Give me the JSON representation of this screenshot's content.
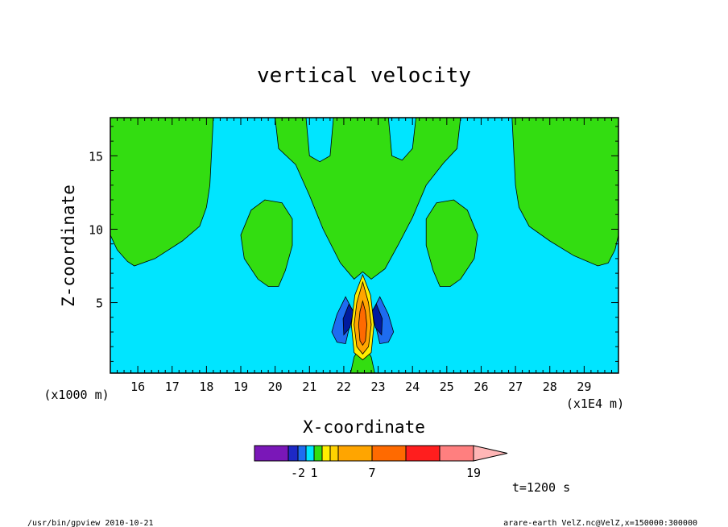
{
  "chart_data": {
    "type": "contour",
    "title": "vertical velocity",
    "xlabel": "X-coordinate",
    "ylabel": "Z-coordinate",
    "x_unit_label": "(x1E4 m)",
    "y_unit_label": "(x1000 m)",
    "xlim": [
      15.2,
      30.0
    ],
    "ylim": [
      0.2,
      17.6
    ],
    "x_ticks": [
      "16",
      "17",
      "18",
      "19",
      "20",
      "21",
      "22",
      "23",
      "24",
      "25",
      "26",
      "27",
      "28",
      "29"
    ],
    "y_ticks": [
      "5",
      "10",
      "15"
    ],
    "grid": false,
    "background_color": "#00e5ff",
    "regions": [
      {
        "name": "positive-weak",
        "color": "#33dd11",
        "polygon": [
          [
            15.2,
            17.6
          ],
          [
            15.2,
            9.6
          ],
          [
            15.4,
            8.6
          ],
          [
            15.7,
            7.8
          ],
          [
            15.9,
            7.5
          ],
          [
            16.5,
            8
          ],
          [
            17.3,
            9.2
          ],
          [
            17.8,
            10.2
          ],
          [
            18,
            11.5
          ],
          [
            18.1,
            13
          ],
          [
            18.2,
            17.6
          ]
        ]
      },
      {
        "name": "positive-weak",
        "color": "#33dd11",
        "polygon": [
          [
            26.9,
            17.6
          ],
          [
            27,
            13
          ],
          [
            27.1,
            11.5
          ],
          [
            27.4,
            10.2
          ],
          [
            28,
            9.2
          ],
          [
            28.7,
            8.2
          ],
          [
            29.4,
            7.5
          ],
          [
            29.7,
            7.7
          ],
          [
            29.9,
            8.6
          ],
          [
            30,
            9.6
          ],
          [
            30,
            17.6
          ]
        ]
      },
      {
        "name": "positive-weak",
        "color": "#33dd11",
        "polygon": [
          [
            19.0,
            9.6
          ],
          [
            19.3,
            11.3
          ],
          [
            19.7,
            12
          ],
          [
            20.2,
            11.8
          ],
          [
            20.5,
            10.7
          ],
          [
            20.5,
            8.9
          ],
          [
            20.3,
            7.2
          ],
          [
            20.1,
            6.1
          ],
          [
            19.8,
            6.1
          ],
          [
            19.5,
            6.6
          ],
          [
            19.1,
            8
          ]
        ]
      },
      {
        "name": "positive-weak",
        "color": "#33dd11",
        "polygon": [
          [
            25.9,
            9.6
          ],
          [
            25.6,
            11.3
          ],
          [
            25.2,
            12
          ],
          [
            24.7,
            11.8
          ],
          [
            24.4,
            10.7
          ],
          [
            24.4,
            8.9
          ],
          [
            24.6,
            7.2
          ],
          [
            24.8,
            6.1
          ],
          [
            25.1,
            6.1
          ],
          [
            25.4,
            6.6
          ],
          [
            25.8,
            8
          ]
        ]
      },
      {
        "name": "positive-weak",
        "color": "#33dd11",
        "polygon": [
          [
            20.0,
            17.6
          ],
          [
            20.1,
            15.5
          ],
          [
            20.6,
            14.4
          ],
          [
            21.0,
            12.3
          ],
          [
            21.4,
            10
          ],
          [
            21.9,
            7.7
          ],
          [
            22.3,
            6.6
          ],
          [
            22.55,
            7.1
          ],
          [
            22.8,
            6.6
          ],
          [
            23.2,
            7.3
          ],
          [
            23.6,
            9
          ],
          [
            24.0,
            10.8
          ],
          [
            24.4,
            13
          ],
          [
            24.9,
            14.5
          ],
          [
            25.3,
            15.5
          ],
          [
            25.4,
            17.6
          ],
          [
            24.1,
            17.6
          ],
          [
            24.0,
            15.5
          ],
          [
            23.7,
            14.7
          ],
          [
            23.4,
            15
          ],
          [
            23.3,
            17.6
          ],
          [
            21.7,
            17.6
          ],
          [
            21.6,
            15
          ],
          [
            21.3,
            14.6
          ],
          [
            21.0,
            15
          ],
          [
            20.9,
            17.6
          ]
        ]
      },
      {
        "name": "positive-weak",
        "color": "#33dd11",
        "polygon": [
          [
            22.2,
            0.2
          ],
          [
            22.3,
            1.3
          ],
          [
            22.45,
            1.9
          ],
          [
            22.55,
            1.7
          ],
          [
            22.65,
            1.9
          ],
          [
            22.8,
            1.3
          ],
          [
            22.9,
            0.2
          ]
        ]
      },
      {
        "name": "negative-weak",
        "color": "#1e6cf0",
        "polygon": [
          [
            22.05,
            5.4
          ],
          [
            21.8,
            4.2
          ],
          [
            21.65,
            3.0
          ],
          [
            21.8,
            2.3
          ],
          [
            22.05,
            2.2
          ],
          [
            22.15,
            3.2
          ],
          [
            22.25,
            4.5
          ]
        ]
      },
      {
        "name": "negative-weak",
        "color": "#1e6cf0",
        "polygon": [
          [
            23.05,
            5.4
          ],
          [
            23.3,
            4.2
          ],
          [
            23.45,
            3.0
          ],
          [
            23.3,
            2.3
          ],
          [
            23.05,
            2.2
          ],
          [
            22.95,
            3.2
          ],
          [
            22.85,
            4.5
          ]
        ]
      },
      {
        "name": "negative-strong",
        "color": "#001a9e",
        "polygon": [
          [
            22.15,
            4.9
          ],
          [
            21.98,
            3.9
          ],
          [
            22.0,
            2.8
          ],
          [
            22.18,
            3.3
          ],
          [
            22.28,
            4.4
          ]
        ]
      },
      {
        "name": "negative-strong",
        "color": "#001a9e",
        "polygon": [
          [
            22.95,
            4.9
          ],
          [
            23.12,
            3.9
          ],
          [
            23.1,
            2.8
          ],
          [
            22.92,
            3.3
          ],
          [
            22.82,
            4.4
          ]
        ]
      },
      {
        "name": "positive-strong-outer",
        "color": "#ffee00",
        "polygon": [
          [
            22.55,
            6.9
          ],
          [
            22.32,
            5.5
          ],
          [
            22.22,
            3.5
          ],
          [
            22.3,
            1.6
          ],
          [
            22.55,
            1.1
          ],
          [
            22.8,
            1.6
          ],
          [
            22.88,
            3.5
          ],
          [
            22.78,
            5.5
          ]
        ]
      },
      {
        "name": "positive-strong-mid",
        "color": "#ffa500",
        "polygon": [
          [
            22.55,
            6.4
          ],
          [
            22.38,
            5.0
          ],
          [
            22.3,
            3.5
          ],
          [
            22.38,
            2.0
          ],
          [
            22.55,
            1.5
          ],
          [
            22.72,
            2.0
          ],
          [
            22.8,
            3.5
          ],
          [
            22.72,
            5.0
          ]
        ]
      },
      {
        "name": "positive-strong-core",
        "color": "#ff6a00",
        "polygon": [
          [
            22.55,
            5.1
          ],
          [
            22.47,
            4.4
          ],
          [
            22.43,
            3.5
          ],
          [
            22.47,
            2.4
          ],
          [
            22.55,
            2.1
          ],
          [
            22.63,
            2.4
          ],
          [
            22.67,
            3.5
          ],
          [
            22.63,
            4.4
          ]
        ]
      }
    ],
    "colorbar": {
      "colors": [
        "#7a17b8",
        "#1d29c6",
        "#1e6cf0",
        "#00e5ff",
        "#33dd11",
        "#ffee00",
        "#ffd200",
        "#ffa500",
        "#ff6a00",
        "#ff1e1e",
        "#ff7f7f",
        "#ffb6b6"
      ],
      "widths": [
        42,
        12,
        10,
        10,
        10,
        10,
        10,
        42,
        42,
        42,
        42,
        42
      ],
      "labels": [
        "-2",
        "1",
        "7",
        "19"
      ]
    },
    "time_label": "t=1200 s"
  },
  "footer": {
    "left": "/usr/bin/gpview   2010-10-21",
    "right": "arare-earth_VelZ.nc@VelZ,x=150000:300000"
  }
}
